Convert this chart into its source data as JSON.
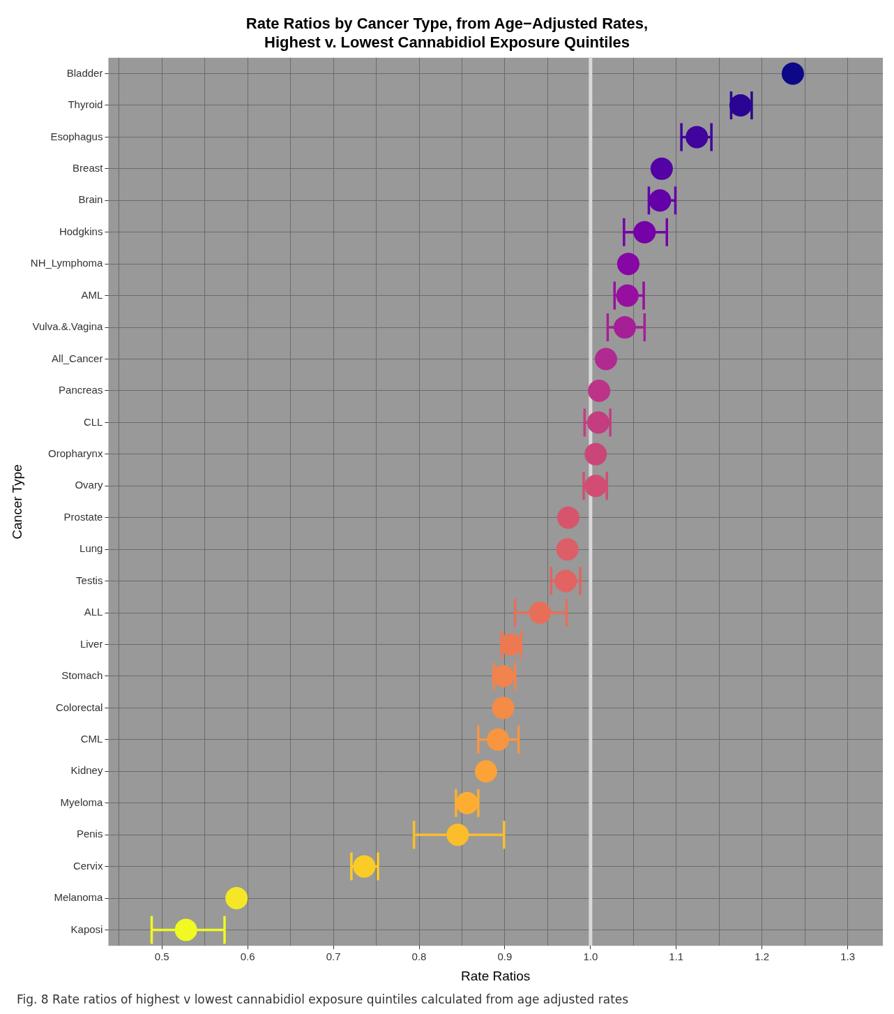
{
  "chart_data": {
    "type": "scatter",
    "title": "Rate Ratios by Cancer Type, from Age−Adjusted Rates,\nHighest v. Lowest Cannabidiol Exposure Quintiles",
    "xlabel": "Rate Ratios",
    "ylabel": "Cancer Type",
    "categories": [
      "Bladder",
      "Thyroid",
      "Esophagus",
      "Breast",
      "Brain",
      "Hodgkins",
      "NH_Lymphoma",
      "AML",
      "Vulva.&.Vagina",
      "All_Cancer",
      "Pancreas",
      "CLL",
      "Oropharynx",
      "Ovary",
      "Prostate",
      "Lung",
      "Testis",
      "ALL",
      "Liver",
      "Stomach",
      "Colorectal",
      "CML",
      "Kidney",
      "Myeloma",
      "Penis",
      "Cervix",
      "Melanoma",
      "Kaposi"
    ],
    "values": [
      1.236,
      1.175,
      1.124,
      1.083,
      1.081,
      1.063,
      1.044,
      1.043,
      1.04,
      1.018,
      1.01,
      1.009,
      1.006,
      1.006,
      0.974,
      0.973,
      0.971,
      0.941,
      0.907,
      0.898,
      0.898,
      0.892,
      0.878,
      0.856,
      0.845,
      0.736,
      0.587,
      0.528
    ],
    "errors": [
      null,
      [
        1.164,
        1.188
      ],
      [
        1.106,
        1.141
      ],
      null,
      [
        1.068,
        1.099
      ],
      [
        1.039,
        1.089
      ],
      null,
      [
        1.028,
        1.062
      ],
      [
        1.02,
        1.063
      ],
      null,
      null,
      [
        0.993,
        1.023
      ],
      null,
      [
        0.992,
        1.019
      ],
      null,
      null,
      [
        0.954,
        0.988
      ],
      [
        0.912,
        0.972
      ],
      [
        0.896,
        0.919
      ],
      [
        0.887,
        0.912
      ],
      null,
      [
        0.869,
        0.916
      ],
      null,
      [
        0.843,
        0.869
      ],
      [
        0.794,
        0.899
      ],
      [
        0.721,
        0.752
      ],
      null,
      [
        0.488,
        0.573
      ]
    ],
    "colors": [
      "#0d0887",
      "#2a0593",
      "#41049d",
      "#5302a3",
      "#6300a7",
      "#7501a8",
      "#8606a6",
      "#960fa0",
      "#a51f97",
      "#b12a90",
      "#bb3488",
      "#c33d80",
      "#ca4679",
      "#d14e72",
      "#d6556d",
      "#dc5e66",
      "#e16462",
      "#e76f5a",
      "#ed7953",
      "#f1834c",
      "#f48b46",
      "#f89540",
      "#fba238",
      "#fdae32",
      "#fcbd2b",
      "#fbcc27",
      "#f6e726",
      "#f0f921"
    ],
    "xlim": [
      0.4375,
      1.341
    ],
    "xticks": [
      {
        "value": 0.45,
        "label": null
      },
      0.5,
      {
        "value": 0.55,
        "label": null
      },
      0.6,
      {
        "value": 0.65,
        "label": null
      },
      0.7,
      {
        "value": 0.75,
        "label": null
      },
      0.8,
      {
        "value": 0.85,
        "label": null
      },
      0.9,
      {
        "value": 0.95,
        "label": null
      },
      {
        "value": 1,
        "label": "1.0"
      },
      {
        "value": 1.05,
        "label": null
      },
      1.1,
      {
        "value": 1.15,
        "label": null
      },
      1.2,
      {
        "value": 1.25,
        "label": null
      },
      1.3
    ],
    "ref_lines": [
      {
        "axis": "x",
        "value": 1.0,
        "color": "#d9d9d9"
      }
    ],
    "orientation": "horizontal",
    "grid": true,
    "legend": false,
    "marker": "circle",
    "annotations": [
      "Fig. 8  Rate ratios of highest v lowest cannabidiol exposure quintiles calculated from age adjusted rates"
    ]
  }
}
